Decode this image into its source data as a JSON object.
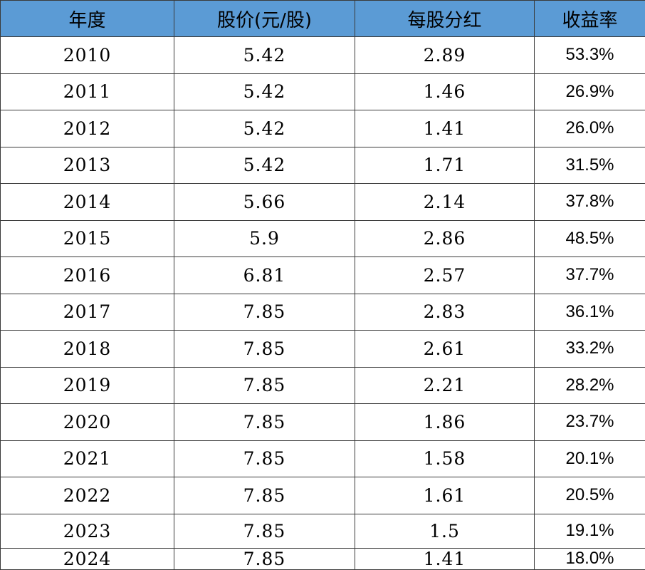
{
  "table": {
    "headers": [
      "年度",
      "股价(元/股)",
      "每股分红",
      "收益率"
    ],
    "rows": [
      {
        "year": "2010",
        "price": "5.42",
        "dividend": "2.89",
        "yield": "53.3%"
      },
      {
        "year": "2011",
        "price": "5.42",
        "dividend": "1.46",
        "yield": "26.9%"
      },
      {
        "year": "2012",
        "price": "5.42",
        "dividend": "1.41",
        "yield": "26.0%"
      },
      {
        "year": "2013",
        "price": "5.42",
        "dividend": "1.71",
        "yield": "31.5%"
      },
      {
        "year": "2014",
        "price": "5.66",
        "dividend": "2.14",
        "yield": "37.8%"
      },
      {
        "year": "2015",
        "price": "5.9",
        "dividend": "2.86",
        "yield": "48.5%"
      },
      {
        "year": "2016",
        "price": "6.81",
        "dividend": "2.57",
        "yield": "37.7%"
      },
      {
        "year": "2017",
        "price": "7.85",
        "dividend": "2.83",
        "yield": "36.1%"
      },
      {
        "year": "2018",
        "price": "7.85",
        "dividend": "2.61",
        "yield": "33.2%"
      },
      {
        "year": "2019",
        "price": "7.85",
        "dividend": "2.21",
        "yield": "28.2%"
      },
      {
        "year": "2020",
        "price": "7.85",
        "dividend": "1.86",
        "yield": "23.7%"
      },
      {
        "year": "2021",
        "price": "7.85",
        "dividend": "1.58",
        "yield": "20.1%"
      },
      {
        "year": "2022",
        "price": "7.85",
        "dividend": "1.61",
        "yield": "20.5%"
      },
      {
        "year": "2023",
        "price": "7.85",
        "dividend": "1.5",
        "yield": "19.1%"
      },
      {
        "year": "2024",
        "price": "7.85",
        "dividend": "1.41",
        "yield": "18.0%"
      }
    ]
  },
  "colors": {
    "header_background": "#5b9bd5",
    "border": "#3a3a3a",
    "text": "#000000"
  }
}
